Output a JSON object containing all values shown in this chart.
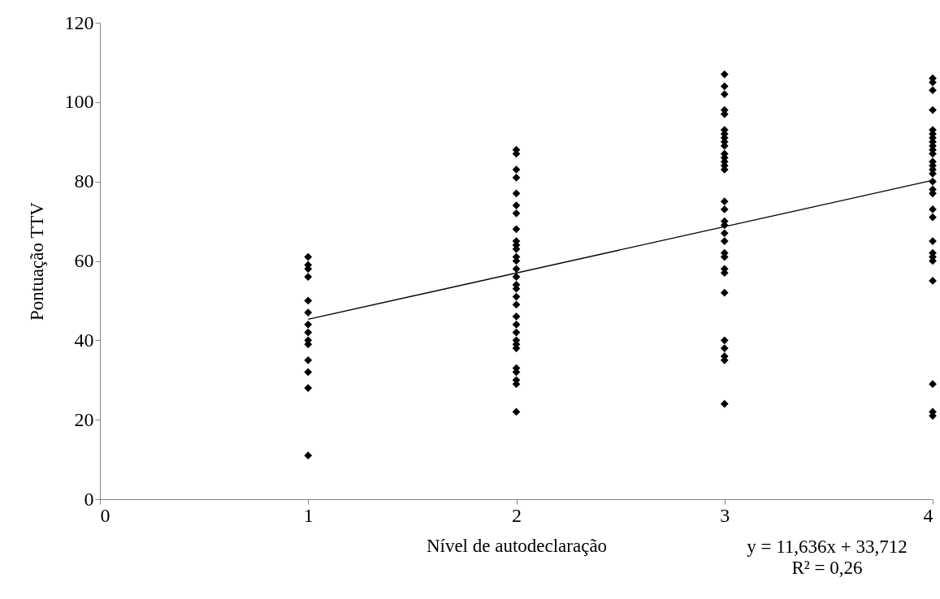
{
  "chart_data": {
    "type": "scatter",
    "xlabel": "Nível de autodeclaração",
    "ylabel": "Pontuação TTV",
    "xlim": [
      0,
      4
    ],
    "xticks": [
      0,
      1,
      2,
      3,
      4
    ],
    "ylim": [
      0,
      120
    ],
    "yticks": [
      0,
      20,
      40,
      60,
      80,
      100,
      120
    ],
    "grid": false,
    "annotations": [
      "y = 11,636x + 33,712",
      "R² = 0,26"
    ],
    "series": [
      {
        "marker": "diamond",
        "color": "#000000",
        "x": [
          1,
          1,
          1,
          1,
          1,
          1,
          1,
          1,
          1,
          1,
          1,
          1,
          1,
          1,
          2,
          2,
          2,
          2,
          2,
          2,
          2,
          2,
          2,
          2,
          2,
          2,
          2,
          2,
          2,
          2,
          2,
          2,
          2,
          2,
          2,
          2,
          2,
          2,
          2,
          2,
          2,
          2,
          2,
          2,
          3,
          3,
          3,
          3,
          3,
          3,
          3,
          3,
          3,
          3,
          3,
          3,
          3,
          3,
          3,
          3,
          3,
          3,
          3,
          3,
          3,
          3,
          3,
          3,
          3,
          3,
          3,
          3,
          3,
          3,
          3,
          4,
          4,
          4,
          4,
          4,
          4,
          4,
          4,
          4,
          4,
          4,
          4,
          4,
          4,
          4,
          4,
          4,
          4,
          4,
          4,
          4,
          4,
          4,
          4,
          4,
          4,
          4,
          4
        ],
        "values": [
          61,
          59,
          58,
          56,
          50,
          47,
          44,
          42,
          40,
          39,
          35,
          32,
          28,
          11,
          88,
          87,
          83,
          81,
          77,
          74,
          72,
          68,
          65,
          64,
          63,
          61,
          60,
          58,
          56,
          54,
          53,
          51,
          49,
          46,
          44,
          42,
          40,
          39,
          38,
          33,
          32,
          30,
          29,
          22,
          107,
          104,
          102,
          98,
          97,
          93,
          92,
          91,
          90,
          89,
          87,
          86,
          85,
          84,
          83,
          75,
          73,
          70,
          69,
          67,
          65,
          62,
          61,
          58,
          57,
          52,
          40,
          38,
          36,
          35,
          24,
          106,
          105,
          103,
          98,
          93,
          92,
          91,
          90,
          89,
          88,
          87,
          85,
          84,
          83,
          82,
          80,
          78,
          77,
          73,
          71,
          65,
          62,
          61,
          60,
          55,
          29,
          22,
          21
        ]
      },
      {
        "type": "line",
        "marker": "none",
        "color": "#000000",
        "x": [
          1,
          4
        ],
        "values": [
          45.3,
          80.3
        ]
      }
    ]
  }
}
